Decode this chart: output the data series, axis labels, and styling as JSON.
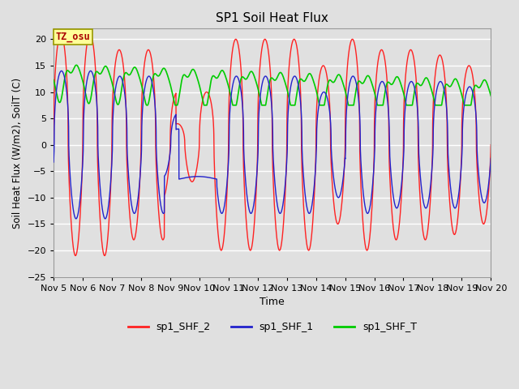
{
  "title": "SP1 Soil Heat Flux",
  "xlabel": "Time",
  "ylabel": "Soil Heat Flux (W/m2), SoilT (C)",
  "ylim": [
    -25,
    22
  ],
  "yticks": [
    -25,
    -20,
    -15,
    -10,
    -5,
    0,
    5,
    10,
    15,
    20
  ],
  "background_color": "#e0e0e0",
  "plot_bg_color": "#e0e0e0",
  "grid_color": "#ffffff",
  "tz_label": "TZ_osu",
  "legend": [
    "sp1_SHF_2",
    "sp1_SHF_1",
    "sp1_SHF_T"
  ],
  "colors": {
    "sp1_SHF_2": "#ff2222",
    "sp1_SHF_1": "#2222cc",
    "sp1_SHF_T": "#00cc00"
  },
  "tick_labels": [
    "Nov 5",
    "Nov 6",
    "Nov 7",
    "Nov 8",
    "Nov 9",
    "Nov 10",
    "Nov 11",
    "Nov 12",
    "Nov 13",
    "Nov 14",
    "Nov 15",
    "Nov 16",
    "Nov 17",
    "Nov 18",
    "Nov 19",
    "Nov 20"
  ]
}
